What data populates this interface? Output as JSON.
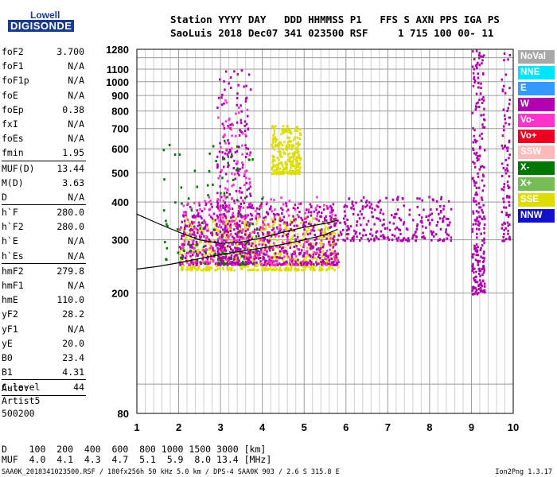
{
  "logo": {
    "line1": "Lowell",
    "line2": "DIGISONDE"
  },
  "header": {
    "line1": "Station YYYY DAY   DDD HHMMSS P1   FFS S AXN PPS IGA PS",
    "line2": "SaoLuis 2018 Dec07 341 023500 RSF     1 715 100 00- 11"
  },
  "params": {
    "group1": [
      {
        "key": "foF2",
        "value": "3.700"
      },
      {
        "key": "foF1",
        "value": "N/A"
      },
      {
        "key": "foF1p",
        "value": "N/A"
      },
      {
        "key": "foE",
        "value": "N/A"
      },
      {
        "key": "foEp",
        "value": "0.38"
      },
      {
        "key": "fxI",
        "value": "N/A"
      },
      {
        "key": "foEs",
        "value": "N/A"
      },
      {
        "key": "fmin",
        "value": "1.95"
      }
    ],
    "group2": [
      {
        "key": "MUF(D)",
        "value": "13.44"
      },
      {
        "key": "M(D)",
        "value": "3.63"
      },
      {
        "key": "D",
        "value": "N/A"
      }
    ],
    "group3": [
      {
        "key": "h`F",
        "value": "280.0"
      },
      {
        "key": "h`F2",
        "value": "280.0"
      },
      {
        "key": "h`E",
        "value": "N/A"
      },
      {
        "key": "h`Es",
        "value": "N/A"
      }
    ],
    "group4": [
      {
        "key": "hmF2",
        "value": "279.8"
      },
      {
        "key": "hmF1",
        "value": "N/A"
      },
      {
        "key": "hmE",
        "value": "110.0"
      },
      {
        "key": "yF2",
        "value": "28.2"
      },
      {
        "key": "yF1",
        "value": "N/A"
      },
      {
        "key": "yE",
        "value": "20.0"
      },
      {
        "key": "B0",
        "value": "23.4"
      },
      {
        "key": "B1",
        "value": "4.31"
      }
    ],
    "group5": [
      {
        "key": "C-level",
        "value": "44"
      }
    ]
  },
  "auto": {
    "line1": "Auto:",
    "line2": "Artist5",
    "line3": "500200"
  },
  "legend": [
    {
      "label": "NoVal",
      "color": "#a8a8a8"
    },
    {
      "label": "NNE",
      "color": "#00e5ff"
    },
    {
      "label": "E",
      "color": "#3399ff"
    },
    {
      "label": "W",
      "color": "#b000b0"
    },
    {
      "label": "Vo-",
      "color": "#ff33cc"
    },
    {
      "label": "Vo+",
      "color": "#ee0022"
    },
    {
      "label": "SSW",
      "color": "#ffbbbb"
    },
    {
      "label": "X-",
      "color": "#007700"
    },
    {
      "label": "X+",
      "color": "#77bb55"
    },
    {
      "label": "SSE",
      "color": "#dddd00"
    },
    {
      "label": "NNW",
      "color": "#1111cc"
    }
  ],
  "dmuf": {
    "d_row": "D    100  200  400  600  800 1000 1500 3000 [km]",
    "muf_row": "MUF  4.0  4.1  4.3  4.7  5.1  5.9  8.0 13.4 [MHz]"
  },
  "footer": {
    "left": "SAA0K_2018341023500.RSF / 180fx256h 50 kHz 5.0 km / DPS-4 SAA0K 903 / 2.6 S 315.8 E",
    "right": "Ion2Png 1.3.17"
  },
  "chart_data": {
    "type": "scatter",
    "title": "",
    "xlabel": "",
    "ylabel": "",
    "xlim": [
      1,
      10
    ],
    "ylim": [
      80,
      1280
    ],
    "y_scale": "log",
    "x_ticks": [
      1,
      2,
      3,
      4,
      5,
      6,
      7,
      8,
      9,
      10
    ],
    "x_minor_step": 0.2,
    "y_ticks": [
      80,
      200,
      300,
      400,
      500,
      600,
      700,
      800,
      900,
      1000,
      1100,
      1280
    ],
    "y_grid": [
      100,
      200,
      300,
      400,
      500,
      600,
      700,
      800,
      900,
      1000,
      1100,
      1200
    ],
    "grid": true,
    "echo_regions": [
      {
        "color": "#dddd00",
        "x": [
          2.0,
          5.8
        ],
        "y": [
          240,
          360
        ],
        "density": "high"
      },
      {
        "color": "#b000b0",
        "x": [
          2.0,
          5.8
        ],
        "y": [
          250,
          400
        ],
        "density": "high"
      },
      {
        "color": "#ff33cc",
        "x": [
          2.0,
          5.8
        ],
        "y": [
          250,
          420
        ],
        "density": "medium"
      },
      {
        "color": "#b000b0",
        "x": [
          5.8,
          8.5
        ],
        "y": [
          300,
          420
        ],
        "density": "medium"
      },
      {
        "color": "#b000b0",
        "x": [
          2.9,
          3.7
        ],
        "y": [
          250,
          1100
        ],
        "density": "medium"
      },
      {
        "color": "#ff33cc",
        "x": [
          2.9,
          3.7
        ],
        "y": [
          300,
          900
        ],
        "density": "low"
      },
      {
        "color": "#dddd00",
        "x": [
          4.2,
          4.9
        ],
        "y": [
          500,
          720
        ],
        "density": "medium"
      },
      {
        "color": "#007700",
        "x": [
          1.6,
          4.0
        ],
        "y": [
          250,
          650
        ],
        "density": "low"
      },
      {
        "color": "#b000b0",
        "x": [
          9.0,
          9.3
        ],
        "y": [
          200,
          1280
        ],
        "density": "medium"
      },
      {
        "color": "#b000b0",
        "x": [
          9.7,
          9.9
        ],
        "y": [
          300,
          1280
        ],
        "density": "low"
      }
    ],
    "trace_lines": [
      {
        "x": [
          1.0,
          1.5,
          2.0,
          2.5,
          3.0,
          3.5,
          4.0,
          4.5,
          5.0,
          5.5,
          5.8
        ],
        "y": [
          240,
          245,
          252,
          260,
          268,
          275,
          282,
          290,
          300,
          312,
          325
        ]
      },
      {
        "x": [
          1.0,
          1.5,
          2.0,
          2.5,
          3.0,
          3.5,
          4.0,
          4.5,
          5.0,
          5.5,
          5.8
        ],
        "y": [
          365,
          340,
          318,
          300,
          292,
          295,
          305,
          318,
          330,
          340,
          348
        ]
      }
    ]
  }
}
